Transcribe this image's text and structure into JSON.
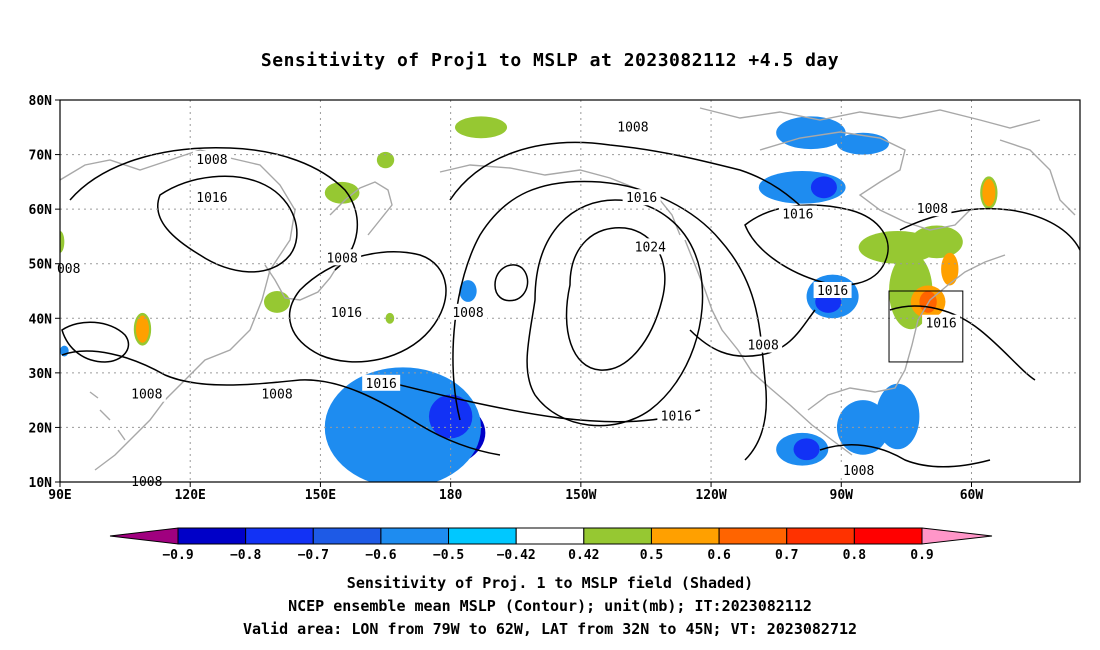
{
  "title": "Sensitivity of Proj1 to MSLP at 2023082112 +4.5 day",
  "lat_labels": [
    "80N",
    "70N",
    "60N",
    "50N",
    "40N",
    "30N",
    "20N",
    "10N"
  ],
  "lon_labels": [
    "90E",
    "120E",
    "150E",
    "180",
    "150W",
    "120W",
    "90W",
    "60W"
  ],
  "contour_labels": [
    {
      "text": "1008",
      "lon": 125,
      "lat": 69
    },
    {
      "text": "1016",
      "lon": 125,
      "lat": 62
    },
    {
      "text": "1008",
      "lon": 155,
      "lat": 51
    },
    {
      "text": "008",
      "lon": 92,
      "lat": 49
    },
    {
      "text": "1016",
      "lon": 156,
      "lat": 41
    },
    {
      "text": "1008",
      "lon": 184,
      "lat": 41
    },
    {
      "text": "1016",
      "lon": 224,
      "lat": 62
    },
    {
      "text": "1008",
      "lon": 222,
      "lat": 75
    },
    {
      "text": "1024",
      "lon": 226,
      "lat": 53
    },
    {
      "text": "1016",
      "lon": 164,
      "lat": 28
    },
    {
      "text": "1008",
      "lon": 110,
      "lat": 26
    },
    {
      "text": "1008",
      "lon": 140,
      "lat": 26
    },
    {
      "text": "1008",
      "lon": 110,
      "lat": 10
    },
    {
      "text": "1016",
      "lon": 232,
      "lat": 22
    },
    {
      "text": "1008",
      "lon": 252,
      "lat": 35
    },
    {
      "text": "1016",
      "lon": 260,
      "lat": 59
    },
    {
      "text": "1016",
      "lon": 268,
      "lat": 45
    },
    {
      "text": "1008",
      "lon": 291,
      "lat": 60
    },
    {
      "text": "1016",
      "lon": 293,
      "lat": 39
    },
    {
      "text": "1008",
      "lon": 274,
      "lat": 12
    }
  ],
  "shading_blobs": [
    {
      "level": "-0.8",
      "lon": 174,
      "lat": 19,
      "rlon": 14,
      "rlat": 7
    },
    {
      "level": "-0.6",
      "lon": 168,
      "lat": 22,
      "rlon": 7,
      "rlat": 4
    },
    {
      "level": "-0.5",
      "lon": 169,
      "lat": 20,
      "rlon": 18,
      "rlat": 11
    },
    {
      "level": "-0.7",
      "lon": 180,
      "lat": 22,
      "rlon": 5,
      "rlat": 4
    },
    {
      "level": "-0.5",
      "lon": 261,
      "lat": 64,
      "rlon": 10,
      "rlat": 3
    },
    {
      "level": "-0.7",
      "lon": 266,
      "lat": 64,
      "rlon": 3,
      "rlat": 2
    },
    {
      "level": "-0.5",
      "lon": 263,
      "lat": 74,
      "rlon": 8,
      "rlat": 3
    },
    {
      "level": "-0.5",
      "lon": 275,
      "lat": 72,
      "rlon": 6,
      "rlat": 2
    },
    {
      "level": "-0.5",
      "lon": 268,
      "lat": 44,
      "rlon": 6,
      "rlat": 4
    },
    {
      "level": "-0.7",
      "lon": 267,
      "lat": 43,
      "rlon": 3,
      "rlat": 2
    },
    {
      "level": "-0.5",
      "lon": 275,
      "lat": 20,
      "rlon": 6,
      "rlat": 5
    },
    {
      "level": "-0.5",
      "lon": 261,
      "lat": 16,
      "rlon": 6,
      "rlat": 3
    },
    {
      "level": "-0.7",
      "lon": 262,
      "lat": 16,
      "rlon": 3,
      "rlat": 2
    },
    {
      "level": "-0.5",
      "lon": 283,
      "lat": 22,
      "rlon": 5,
      "rlat": 6
    },
    {
      "level": "-0.5",
      "lon": 184,
      "lat": 45,
      "rlon": 2,
      "rlat": 2
    },
    {
      "level": "-0.5",
      "lon": 91,
      "lat": 34,
      "rlon": 1,
      "rlat": 1
    },
    {
      "level": "0.5",
      "lon": 187,
      "lat": 75,
      "rlon": 6,
      "rlat": 2
    },
    {
      "level": "0.5",
      "lon": 283,
      "lat": 53,
      "rlon": 9,
      "rlat": 3
    },
    {
      "level": "0.5",
      "lon": 292,
      "lat": 54,
      "rlon": 6,
      "rlat": 3
    },
    {
      "level": "0.5",
      "lon": 286,
      "lat": 45,
      "rlon": 5,
      "rlat": 7
    },
    {
      "level": "0.5",
      "lon": 155,
      "lat": 63,
      "rlon": 4,
      "rlat": 2
    },
    {
      "level": "0.5",
      "lon": 140,
      "lat": 43,
      "rlon": 3,
      "rlat": 2
    },
    {
      "level": "0.5",
      "lon": 165,
      "lat": 69,
      "rlon": 2,
      "rlat": 1.5
    },
    {
      "level": "0.5",
      "lon": 166,
      "lat": 40,
      "rlon": 1,
      "rlat": 1
    },
    {
      "level": "0.5",
      "lon": 90,
      "lat": 54,
      "rlon": 1,
      "rlat": 2
    },
    {
      "level": "0.5",
      "lon": 109,
      "lat": 38,
      "rlon": 2,
      "rlat": 3
    },
    {
      "level": "0.5",
      "lon": 304,
      "lat": 63,
      "rlon": 2,
      "rlat": 3
    },
    {
      "level": "0.6",
      "lon": 109,
      "lat": 38,
      "rlon": 1.5,
      "rlat": 2.5
    },
    {
      "level": "0.6",
      "lon": 304,
      "lat": 63,
      "rlon": 1.5,
      "rlat": 2.5
    },
    {
      "level": "0.6",
      "lon": 290,
      "lat": 43,
      "rlon": 4,
      "rlat": 3
    },
    {
      "level": "0.6",
      "lon": 295,
      "lat": 49,
      "rlon": 2,
      "rlat": 3
    },
    {
      "level": "0.7",
      "lon": 290,
      "lat": 43,
      "rlon": 2,
      "rlat": 2
    }
  ],
  "colors": {
    "-0.9": "#a0007f",
    "-0.8": "#0000c8",
    "-0.7": "#1232f5",
    "-0.6": "#1e5ae6",
    "-0.5": "#1e8cf0",
    "-0.42": "#00c8ff",
    "0.42": "#ffffff",
    "0.5": "#96c832",
    "0.6": "#ffa000",
    "0.7": "#ff6400",
    "0.8": "#ff3200",
    "0.9": "#ff0000",
    "over": "#ff96c8",
    "contour": "#000000",
    "coast": "#a8a8a8",
    "grid": "#9a9a9a"
  },
  "colorbar": {
    "segments": [
      "-0.9",
      "-0.8",
      "-0.7",
      "-0.6",
      "-0.5",
      "-0.42",
      "0.42",
      "0.5",
      "0.6",
      "0.7",
      "0.8",
      "0.9"
    ],
    "labels": [
      "-0.9",
      "-0.8",
      "-0.7",
      "-0.6",
      "-0.5",
      "-0.42",
      "0.42",
      "0.5",
      "0.6",
      "0.7",
      "0.8",
      "0.9"
    ]
  },
  "valid_box": {
    "lon_min": 281,
    "lon_max": 298,
    "lat_min": 32,
    "lat_max": 45
  },
  "footer": {
    "line1": "Sensitivity of Proj. 1 to MSLP field (Shaded)",
    "line2": "NCEP ensemble mean MSLP (Contour); unit(mb); IT:2023082112",
    "line3": "Valid area: LON from 79W to 62W, LAT from 32N to 45N; VT: 2023082712"
  }
}
